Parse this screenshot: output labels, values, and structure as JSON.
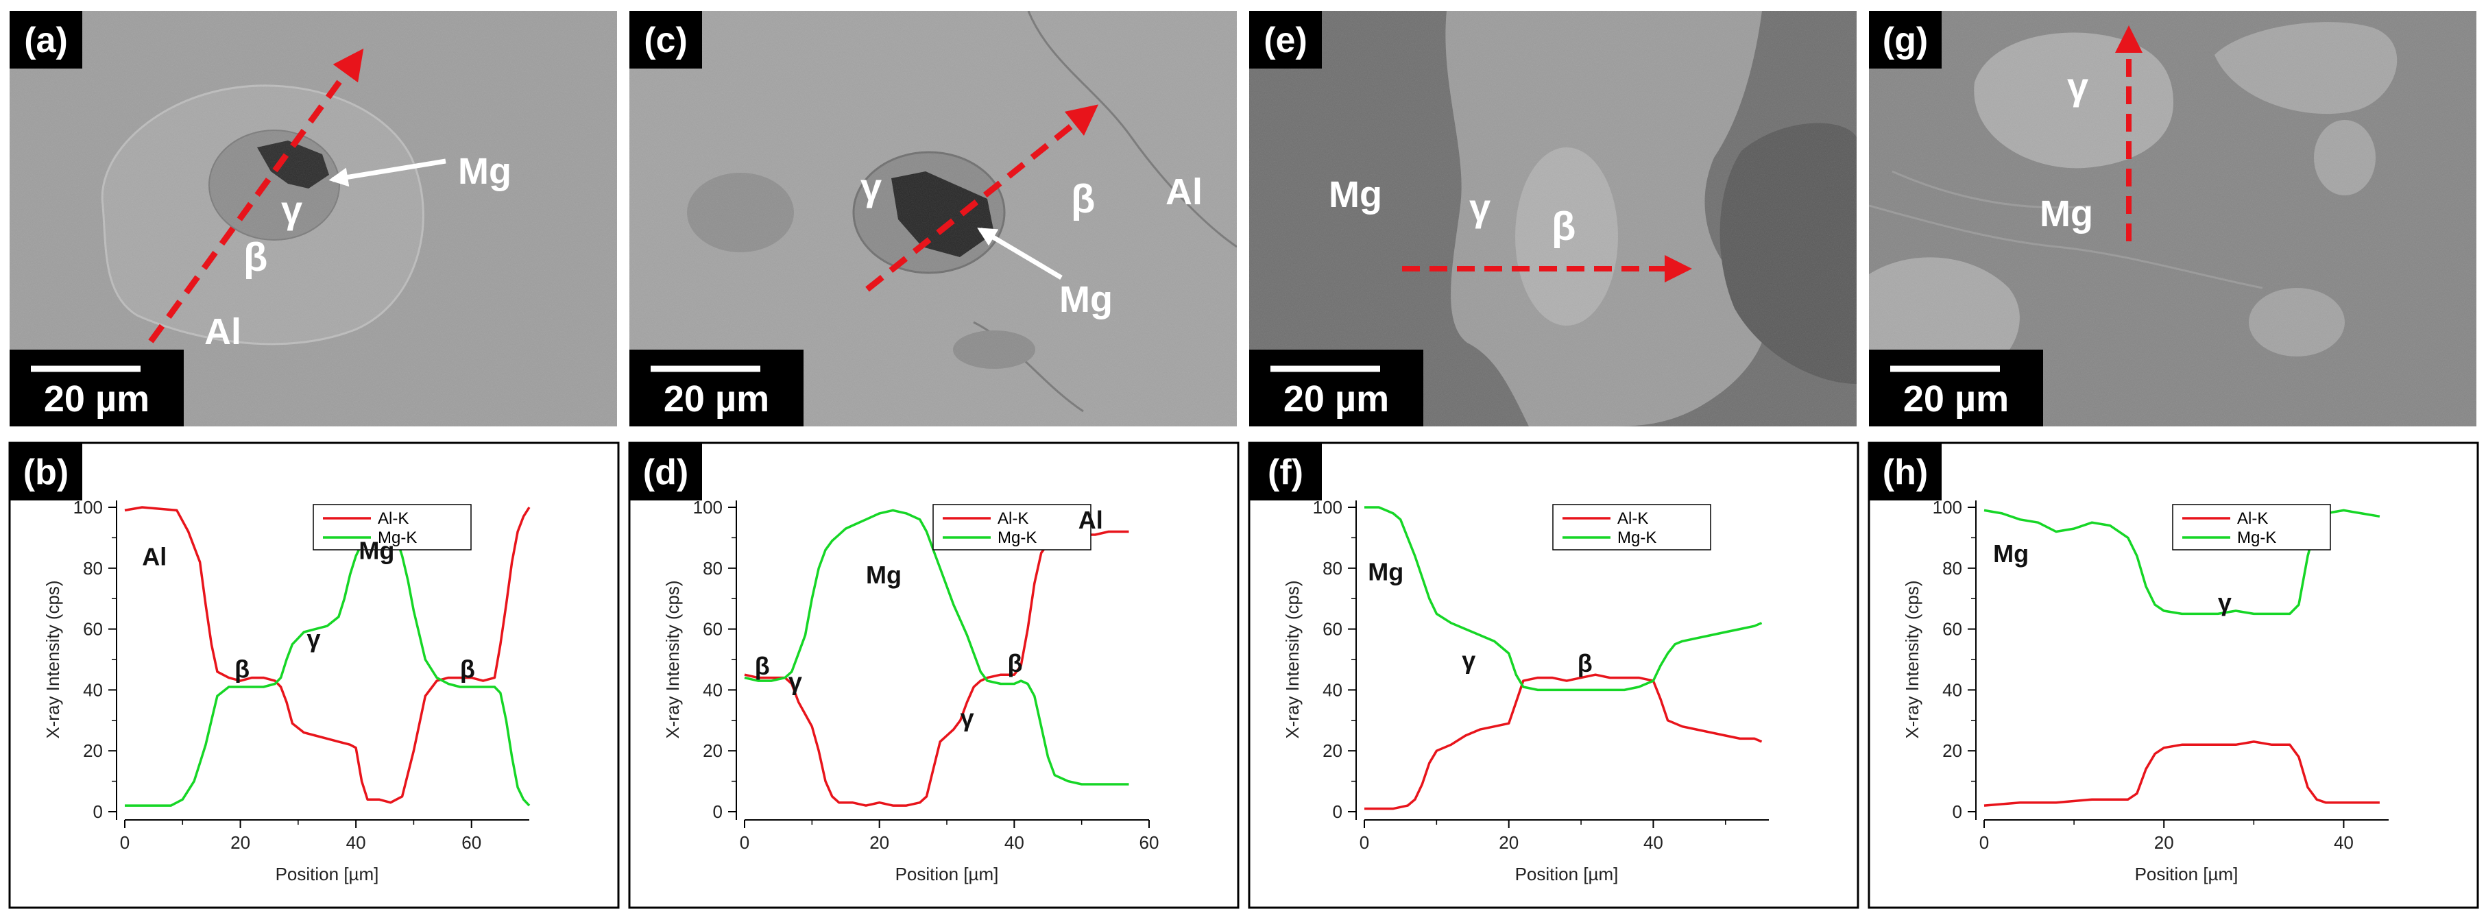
{
  "colors": {
    "al": "#e8141b",
    "mg": "#16d626",
    "arrow": "#e8141b",
    "label_bg": "#000000",
    "sem_gray": "#a7a7a7"
  },
  "panels": [
    {
      "micrograph": {
        "tag": "(a)",
        "scalebar": "20 µm",
        "phases": [
          "Mg",
          "γ",
          "β",
          "Al"
        ]
      },
      "profile_tag": "(b)"
    },
    {
      "micrograph": {
        "tag": "(c)",
        "scalebar": "20 µm",
        "phases": [
          "γ",
          "Mg",
          "β",
          "Al"
        ]
      },
      "profile_tag": "(d)"
    },
    {
      "micrograph": {
        "tag": "(e)",
        "scalebar": "20 µm",
        "phases": [
          "Mg",
          "γ",
          "β"
        ]
      },
      "profile_tag": "(f)"
    },
    {
      "micrograph": {
        "tag": "(g)",
        "scalebar": "20 µm",
        "phases": [
          "γ",
          "Mg"
        ]
      },
      "profile_tag": "(h)"
    }
  ],
  "chart_data": [
    {
      "type": "line",
      "title": "",
      "xlabel": "Position [µm]",
      "ylabel": "X-ray Intensity (cps)",
      "xlim": [
        0,
        70
      ],
      "ylim": [
        0,
        100
      ],
      "xticks": [
        0,
        20,
        40,
        60
      ],
      "yticks": [
        0,
        20,
        40,
        60,
        80,
        100
      ],
      "legend": "top-center",
      "series": [
        {
          "name": "Al-K",
          "color": "#e8141b",
          "x": [
            0,
            3,
            9,
            11,
            13,
            14,
            15,
            16,
            18,
            20,
            22,
            24,
            26,
            27,
            28,
            29,
            31,
            33,
            35,
            37,
            39,
            40,
            41,
            42,
            44,
            46,
            48,
            50,
            52,
            54,
            56,
            58,
            60,
            62,
            64,
            65,
            66,
            67,
            68,
            69,
            70
          ],
          "y": [
            99,
            100,
            99,
            92,
            82,
            68,
            55,
            46,
            44,
            43,
            44,
            44,
            43,
            41,
            36,
            29,
            26,
            25,
            24,
            23,
            22,
            21,
            10,
            4,
            4,
            3,
            5,
            20,
            38,
            43,
            44,
            44,
            44,
            43,
            44,
            55,
            68,
            82,
            92,
            97,
            100
          ]
        },
        {
          "name": "Mg-K",
          "color": "#16d626",
          "x": [
            0,
            4,
            8,
            10,
            12,
            13,
            14,
            15,
            16,
            18,
            20,
            22,
            24,
            26,
            27,
            28,
            29,
            30,
            31,
            33,
            35,
            37,
            38,
            39,
            40,
            41,
            42,
            44,
            45,
            46,
            47,
            48,
            49,
            50,
            51,
            52,
            54,
            56,
            58,
            60,
            62,
            64,
            65,
            66,
            67,
            68,
            69,
            70
          ],
          "y": [
            2,
            2,
            2,
            4,
            10,
            16,
            22,
            30,
            38,
            41,
            41,
            41,
            41,
            42,
            44,
            50,
            55,
            57,
            59,
            60,
            61,
            64,
            70,
            78,
            84,
            88,
            91,
            94,
            95,
            94,
            90,
            84,
            76,
            66,
            58,
            50,
            44,
            42,
            41,
            41,
            41,
            41,
            39,
            30,
            18,
            8,
            4,
            2
          ]
        }
      ],
      "annotations": [
        {
          "text": "Al",
          "x": 3,
          "y": 81
        },
        {
          "text": "Mg",
          "x": 40.5,
          "y": 83
        },
        {
          "text": "β",
          "x": 19,
          "y": 44
        },
        {
          "text": "γ",
          "x": 31.5,
          "y": 54
        },
        {
          "text": "β",
          "x": 58,
          "y": 44
        }
      ]
    },
    {
      "type": "line",
      "title": "",
      "xlabel": "Position [µm]",
      "ylabel": "X-ray Intensity (cps)",
      "xlim": [
        0,
        60
      ],
      "ylim": [
        0,
        100
      ],
      "xticks": [
        0,
        20,
        40,
        60
      ],
      "yticks": [
        0,
        20,
        40,
        60,
        80,
        100
      ],
      "legend": "top-center",
      "series": [
        {
          "name": "Al-K",
          "color": "#e8141b",
          "x": [
            0,
            2,
            4,
            6,
            7,
            8,
            9,
            10,
            11,
            12,
            13,
            14,
            16,
            18,
            20,
            22,
            24,
            26,
            27,
            28,
            29,
            30,
            31,
            32,
            33,
            34,
            35,
            36,
            38,
            40,
            41,
            42,
            43,
            44,
            45,
            46,
            48,
            50,
            52,
            54,
            56,
            57
          ],
          "y": [
            45,
            44,
            44,
            44,
            42,
            36,
            32,
            28,
            20,
            10,
            5,
            3,
            3,
            2,
            3,
            2,
            2,
            3,
            5,
            14,
            23,
            25,
            27,
            30,
            36,
            41,
            43,
            44,
            45,
            45,
            48,
            60,
            75,
            85,
            88,
            89,
            90,
            91,
            91,
            92,
            92,
            92
          ]
        },
        {
          "name": "Mg-K",
          "color": "#16d626",
          "x": [
            0,
            2,
            4,
            6,
            7,
            8,
            9,
            10,
            11,
            12,
            13,
            14,
            15,
            16,
            18,
            20,
            22,
            24,
            26,
            27,
            28,
            29,
            30,
            31,
            32,
            33,
            34,
            35,
            36,
            38,
            40,
            41,
            42,
            43,
            44,
            45,
            46,
            48,
            50,
            52,
            54,
            56,
            57
          ],
          "y": [
            44,
            43,
            43,
            44,
            46,
            52,
            58,
            70,
            80,
            86,
            89,
            91,
            93,
            94,
            96,
            98,
            99,
            98,
            96,
            92,
            86,
            80,
            74,
            68,
            63,
            58,
            52,
            46,
            43,
            42,
            42,
            43,
            42,
            38,
            28,
            18,
            12,
            10,
            9,
            9,
            9,
            9,
            9
          ]
        }
      ],
      "annotations": [
        {
          "text": "Al",
          "x": 49.5,
          "y": 93
        },
        {
          "text": "Mg",
          "x": 18,
          "y": 75
        },
        {
          "text": "β",
          "x": 1.5,
          "y": 45
        },
        {
          "text": "γ",
          "x": 6.5,
          "y": 40
        },
        {
          "text": "γ",
          "x": 32,
          "y": 28
        },
        {
          "text": "β",
          "x": 39,
          "y": 46
        }
      ]
    },
    {
      "type": "line",
      "title": "",
      "xlabel": "Position [µm]",
      "ylabel": "X-ray Intensity (cps)",
      "xlim": [
        0,
        56
      ],
      "ylim": [
        0,
        100
      ],
      "xticks": [
        0,
        20,
        40
      ],
      "yticks": [
        0,
        20,
        40,
        60,
        80,
        100
      ],
      "legend": "top-center",
      "series": [
        {
          "name": "Al-K",
          "color": "#e8141b",
          "x": [
            0,
            2,
            4,
            6,
            7,
            8,
            9,
            10,
            12,
            14,
            16,
            18,
            20,
            21,
            22,
            24,
            26,
            28,
            30,
            32,
            34,
            36,
            38,
            40,
            41,
            42,
            44,
            46,
            48,
            50,
            52,
            54,
            55
          ],
          "y": [
            1,
            1,
            1,
            2,
            4,
            9,
            16,
            20,
            22,
            25,
            27,
            28,
            29,
            36,
            43,
            44,
            44,
            43,
            44,
            45,
            44,
            44,
            44,
            43,
            37,
            30,
            28,
            27,
            26,
            25,
            24,
            24,
            23
          ]
        },
        {
          "name": "Mg-K",
          "color": "#16d626",
          "x": [
            0,
            2,
            3,
            4,
            5,
            6,
            7,
            8,
            9,
            10,
            12,
            14,
            16,
            18,
            20,
            21,
            22,
            24,
            26,
            28,
            30,
            32,
            34,
            36,
            38,
            40,
            41,
            42,
            43,
            44,
            46,
            48,
            50,
            52,
            54,
            55
          ],
          "y": [
            100,
            100,
            99,
            98,
            96,
            90,
            84,
            77,
            70,
            65,
            62,
            60,
            58,
            56,
            52,
            45,
            41,
            40,
            40,
            40,
            40,
            40,
            40,
            40,
            41,
            43,
            48,
            52,
            55,
            56,
            57,
            58,
            59,
            60,
            61,
            62
          ]
        }
      ],
      "annotations": [
        {
          "text": "Mg",
          "x": 0.5,
          "y": 76
        },
        {
          "text": "γ",
          "x": 13.5,
          "y": 47
        },
        {
          "text": "β",
          "x": 29.5,
          "y": 46
        }
      ]
    },
    {
      "type": "line",
      "title": "",
      "xlabel": "Position [µm]",
      "ylabel": "X-ray Intensity (cps)",
      "xlim": [
        0,
        45
      ],
      "ylim": [
        0,
        100
      ],
      "xticks": [
        0,
        20,
        40
      ],
      "yticks": [
        0,
        20,
        40,
        60,
        80,
        100
      ],
      "legend": "top-center",
      "series": [
        {
          "name": "Al-K",
          "color": "#e8141b",
          "x": [
            0,
            4,
            8,
            12,
            16,
            17,
            18,
            19,
            20,
            22,
            24,
            26,
            28,
            30,
            32,
            34,
            35,
            36,
            37,
            38,
            40,
            42,
            44
          ],
          "y": [
            2,
            3,
            3,
            4,
            4,
            6,
            14,
            19,
            21,
            22,
            22,
            22,
            22,
            23,
            22,
            22,
            18,
            8,
            4,
            3,
            3,
            3,
            3
          ]
        },
        {
          "name": "Mg-K",
          "color": "#16d626",
          "x": [
            0,
            2,
            4,
            6,
            8,
            10,
            12,
            14,
            16,
            17,
            18,
            19,
            20,
            22,
            24,
            26,
            28,
            30,
            32,
            34,
            35,
            36,
            37,
            38,
            40,
            42,
            44
          ],
          "y": [
            99,
            98,
            96,
            95,
            92,
            93,
            95,
            94,
            90,
            84,
            74,
            68,
            66,
            65,
            65,
            65,
            66,
            65,
            65,
            65,
            68,
            84,
            95,
            98,
            99,
            98,
            97
          ]
        }
      ],
      "annotations": [
        {
          "text": "Mg",
          "x": 1,
          "y": 82
        },
        {
          "text": "γ",
          "x": 26,
          "y": 66
        }
      ]
    }
  ]
}
